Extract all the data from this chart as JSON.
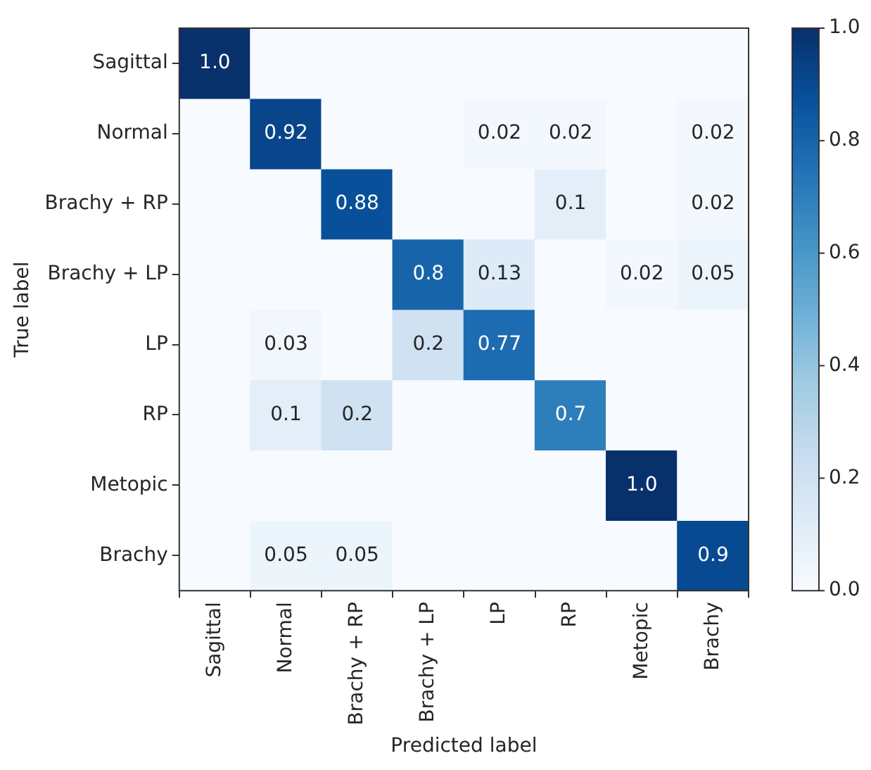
{
  "chart_data": {
    "type": "heatmap",
    "xlabel": "Predicted label",
    "ylabel": "True label",
    "categories": [
      "Sagittal",
      "Normal",
      "Brachy + RP",
      "Brachy + LP",
      "LP",
      "RP",
      "Metopic",
      "Brachy"
    ],
    "y_categories": [
      "Sagittal",
      "Normal",
      "Brachy + RP",
      "Brachy + LP",
      "LP",
      "RP",
      "Metopic",
      "Brachy"
    ],
    "cells": [
      [
        1,
        0,
        0,
        0,
        0,
        0,
        0,
        0
      ],
      [
        0,
        0.92,
        0,
        0,
        0.02,
        0.02,
        0,
        0.02
      ],
      [
        0,
        0,
        0.88,
        0,
        0,
        0.1,
        0,
        0.02
      ],
      [
        0,
        0,
        0,
        0.8,
        0.13,
        0,
        0.02,
        0.05
      ],
      [
        0,
        0.03,
        0,
        0.2,
        0.77,
        0,
        0,
        0
      ],
      [
        0,
        0.1,
        0.2,
        0,
        0,
        0.7,
        0,
        0
      ],
      [
        0,
        0,
        0,
        0,
        0,
        0,
        1,
        0
      ],
      [
        0,
        0.05,
        0.05,
        0,
        0,
        0,
        0,
        0.9
      ]
    ],
    "cell_labels": [
      [
        "1.0",
        null,
        null,
        null,
        null,
        null,
        null,
        null
      ],
      [
        null,
        "0.92",
        null,
        null,
        "0.02",
        "0.02",
        null,
        "0.02"
      ],
      [
        null,
        null,
        "0.88",
        null,
        null,
        "0.1",
        null,
        "0.02"
      ],
      [
        null,
        null,
        null,
        "0.8",
        "0.13",
        null,
        "0.02",
        "0.05"
      ],
      [
        null,
        "0.03",
        null,
        "0.2",
        "0.77",
        null,
        null,
        null
      ],
      [
        null,
        "0.1",
        "0.2",
        null,
        null,
        "0.7",
        null,
        null
      ],
      [
        null,
        null,
        null,
        null,
        null,
        null,
        "1.0",
        null
      ],
      [
        null,
        "0.05",
        "0.05",
        null,
        null,
        null,
        null,
        "0.9"
      ]
    ],
    "clim": [
      0,
      1
    ],
    "cticks": [
      {
        "value": 0,
        "label": "0.0"
      },
      0.2,
      0.4,
      0.6,
      0.8,
      {
        "value": 1,
        "label": "1.0"
      }
    ]
  }
}
